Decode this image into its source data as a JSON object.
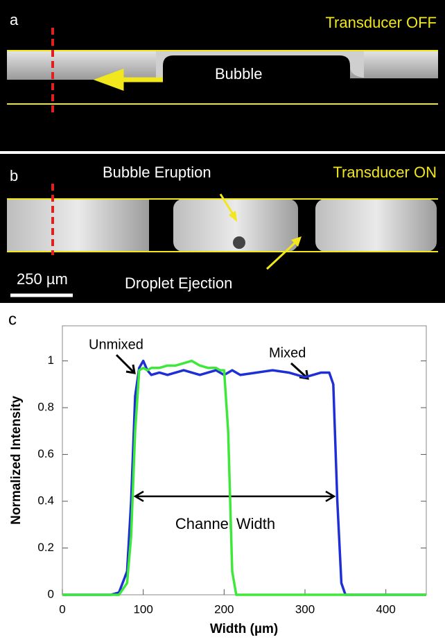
{
  "panels": {
    "a": {
      "letter": "a",
      "status": "Transducer OFF",
      "label": "Bubble"
    },
    "b": {
      "letter": "b",
      "status": "Transducer ON",
      "eruption": "Bubble Eruption",
      "ejection": "Droplet Ejection",
      "scale": "250 µm"
    }
  },
  "chart_data": {
    "type": "line",
    "letter": "c",
    "x_label": "Width (µm)",
    "y_label": "Normalized Intensity",
    "annotations": {
      "unmixed": "Unmixed",
      "mixed": "Mixed",
      "channel": "Channel Width"
    },
    "xlim": [
      0,
      450
    ],
    "ylim": [
      0,
      1.15
    ],
    "xticks": [
      0,
      100,
      200,
      300,
      400
    ],
    "yticks": [
      0,
      0.2,
      0.4,
      0.6,
      0.8,
      1
    ],
    "x": [
      0,
      60,
      70,
      80,
      85,
      90,
      95,
      100,
      105,
      110,
      120,
      130,
      140,
      150,
      160,
      170,
      180,
      190,
      195,
      200,
      205,
      210,
      215,
      220,
      240,
      260,
      280,
      300,
      310,
      320,
      330,
      335,
      340,
      345,
      350,
      400,
      450
    ],
    "series": [
      {
        "name": "Mixed",
        "color": "#1f2fd6",
        "values": [
          0,
          0,
          0.01,
          0.1,
          0.4,
          0.85,
          0.97,
          1.0,
          0.96,
          0.94,
          0.95,
          0.94,
          0.95,
          0.96,
          0.95,
          0.94,
          0.95,
          0.96,
          0.95,
          0.94,
          0.95,
          0.96,
          0.95,
          0.94,
          0.95,
          0.96,
          0.95,
          0.93,
          0.94,
          0.95,
          0.95,
          0.9,
          0.4,
          0.05,
          0,
          0,
          0
        ]
      },
      {
        "name": "Unmixed",
        "color": "#3ee83a",
        "values": [
          0,
          0,
          0,
          0.05,
          0.25,
          0.7,
          0.96,
          0.97,
          0.96,
          0.97,
          0.97,
          0.98,
          0.98,
          0.99,
          1.0,
          0.98,
          0.97,
          0.97,
          0.96,
          0.96,
          0.7,
          0.1,
          0,
          0,
          0,
          0,
          0,
          0,
          0,
          0,
          0,
          0,
          0,
          0,
          0,
          0,
          0
        ]
      }
    ]
  }
}
